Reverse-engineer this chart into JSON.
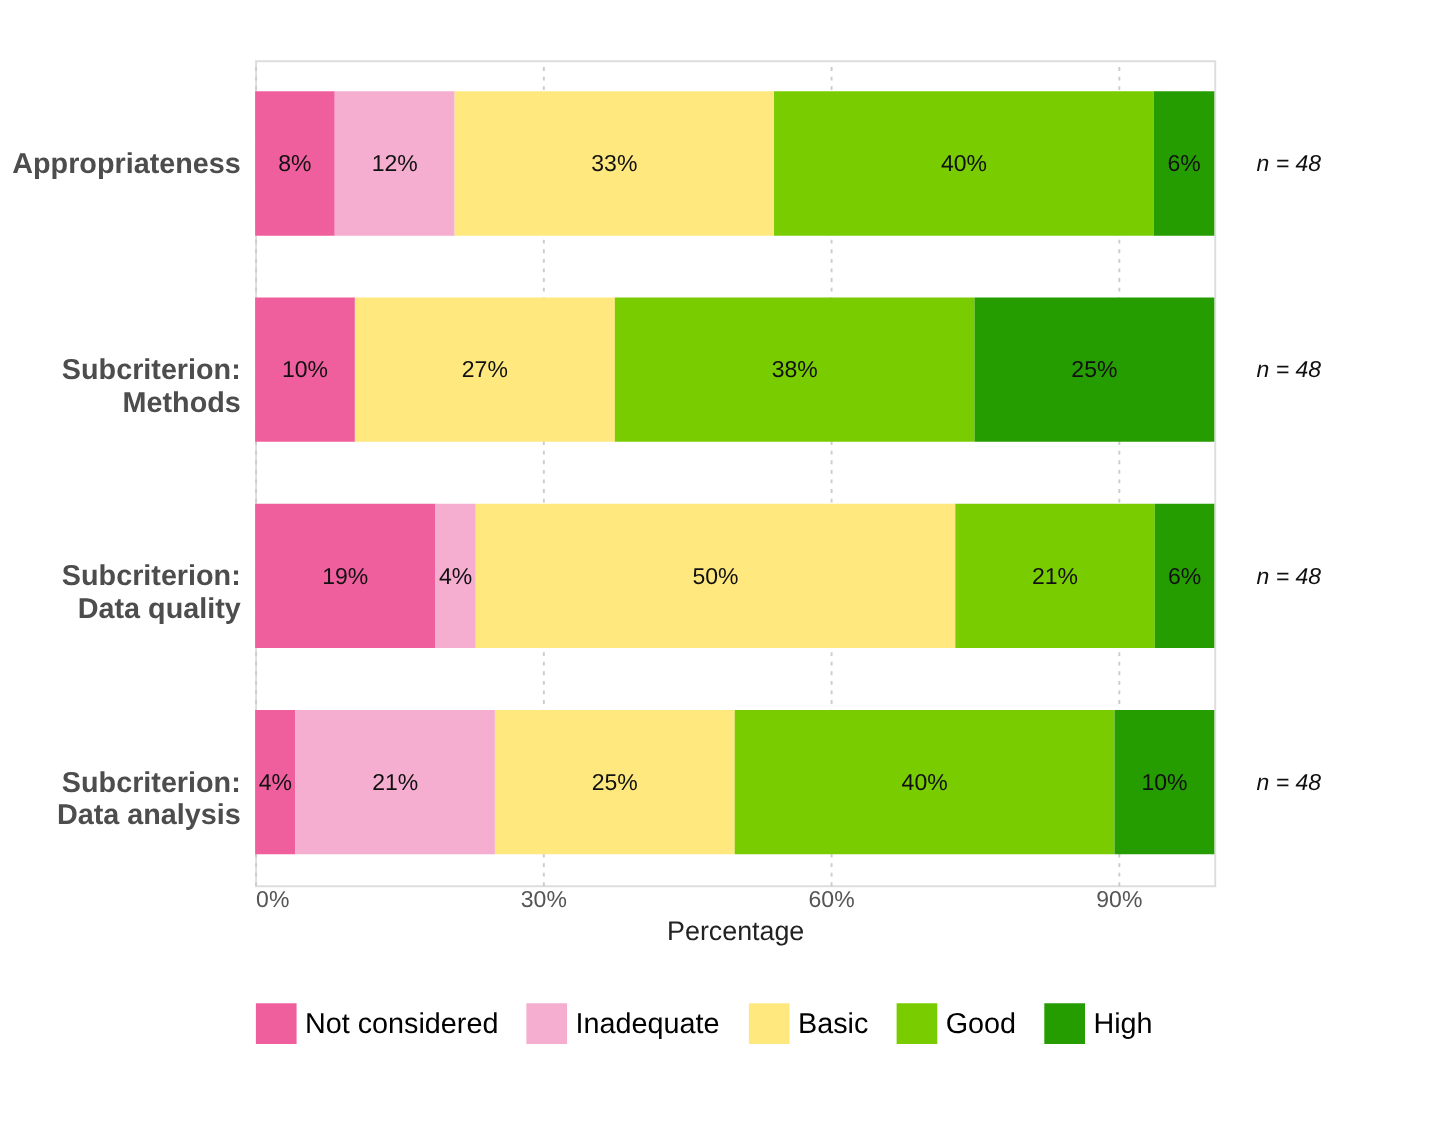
{
  "chart_data": {
    "type": "bar",
    "orientation": "horizontal",
    "stacked": true,
    "categories": [
      "Appropriateness",
      "Subcriterion:\nMethods",
      "Subcriterion:\nData quality",
      "Subcriterion:\nData analysis"
    ],
    "series": [
      {
        "name": "Not considered",
        "color": "#ef5f9e",
        "values": [
          8.3,
          10.4,
          18.8,
          4.2
        ],
        "value_labels": [
          "8%",
          "10%",
          "19%",
          "4%"
        ]
      },
      {
        "name": "Inadequate",
        "color": "#f5aed0",
        "values": [
          12.5,
          0,
          4.2,
          20.8
        ],
        "value_labels": [
          "12%",
          null,
          "4%",
          "21%"
        ]
      },
      {
        "name": "Basic",
        "color": "#ffe97f",
        "values": [
          33.3,
          27.1,
          50.0,
          25.0
        ],
        "value_labels": [
          "33%",
          "27%",
          "50%",
          "25%"
        ]
      },
      {
        "name": "Good",
        "color": "#78cc00",
        "values": [
          39.6,
          37.5,
          20.8,
          39.6
        ],
        "value_labels": [
          "40%",
          "38%",
          "21%",
          "40%"
        ]
      },
      {
        "name": "High",
        "color": "#259d00",
        "values": [
          6.3,
          25.0,
          6.2,
          10.4
        ],
        "value_labels": [
          "6%",
          "25%",
          "6%",
          "10%"
        ]
      }
    ],
    "xlim": [
      0,
      100
    ],
    "xticks": [
      {
        "value": 0,
        "label": "0%"
      },
      {
        "value": 30,
        "label": "30%"
      },
      {
        "value": 60,
        "label": "60%"
      },
      {
        "value": 90,
        "label": "90%"
      }
    ],
    "xlabel": "Percentage",
    "grid": "x",
    "legend": "bottom",
    "annotations": [
      "n = 48",
      "n = 48",
      "n = 48",
      "n = 48"
    ]
  }
}
